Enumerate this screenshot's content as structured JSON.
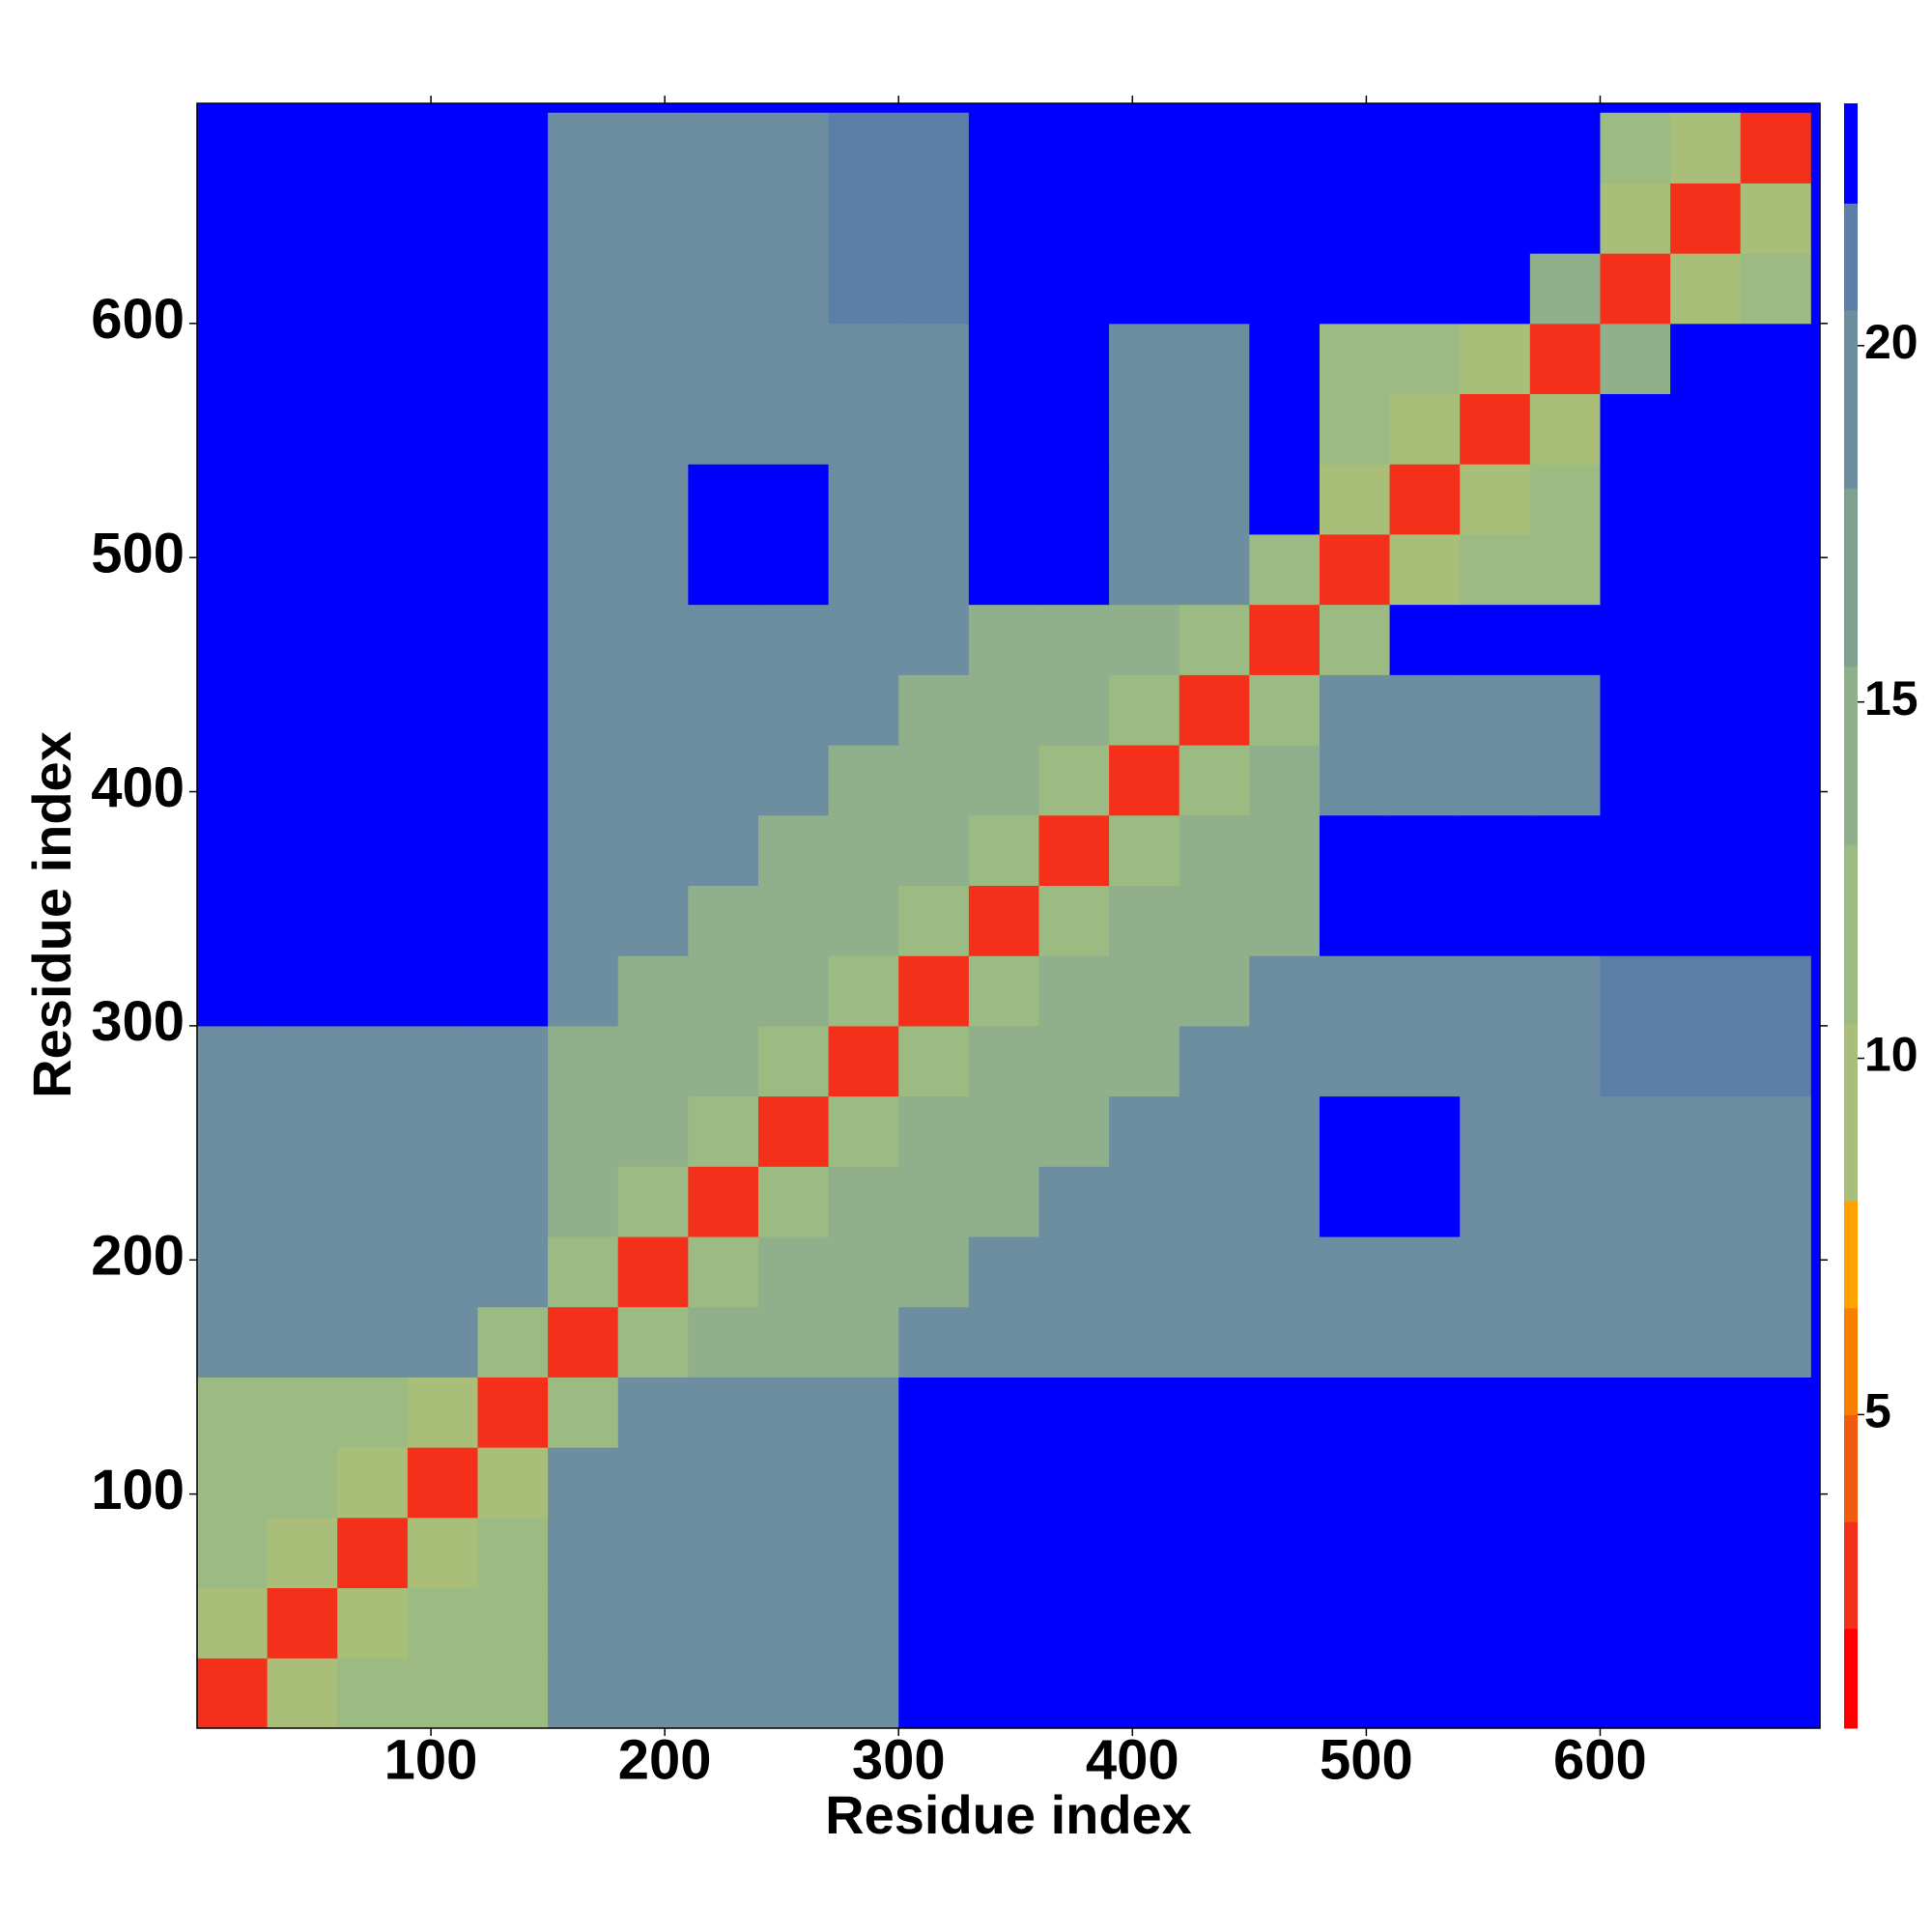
{
  "chart_data": {
    "type": "heatmap",
    "x_label": "Residue index",
    "y_label": "Residue index",
    "xlim": [
      0,
      694
    ],
    "ylim": [
      0,
      694
    ],
    "xticks": [
      100,
      200,
      300,
      400,
      500,
      600
    ],
    "yticks": [
      100,
      200,
      300,
      400,
      500,
      600
    ],
    "x_bins": [
      0,
      30,
      60,
      90,
      120,
      150,
      180,
      210,
      240,
      270,
      300,
      330,
      360,
      390,
      420,
      450,
      480,
      510,
      540,
      570,
      600,
      630,
      660,
      690
    ],
    "y_bins": [
      0,
      30,
      60,
      90,
      120,
      150,
      180,
      210,
      240,
      270,
      300,
      330,
      360,
      390,
      420,
      450,
      480,
      510,
      540,
      570,
      600,
      630,
      660,
      690
    ],
    "values": [
      [
        3,
        10,
        12,
        12,
        12,
        20,
        20,
        20,
        20,
        20,
        23,
        23,
        23,
        23,
        23,
        23,
        23,
        23,
        23,
        23,
        23,
        23,
        23
      ],
      [
        10,
        3,
        10,
        12,
        12,
        20,
        20,
        20,
        20,
        20,
        23,
        23,
        23,
        23,
        23,
        23,
        23,
        23,
        23,
        23,
        23,
        23,
        23
      ],
      [
        12,
        10,
        3,
        10,
        12,
        20,
        20,
        20,
        20,
        20,
        23,
        23,
        23,
        23,
        23,
        23,
        23,
        23,
        23,
        23,
        23,
        23,
        23
      ],
      [
        12,
        12,
        10,
        3,
        10,
        20,
        20,
        20,
        20,
        20,
        23,
        23,
        23,
        23,
        23,
        23,
        23,
        23,
        23,
        23,
        23,
        23,
        23
      ],
      [
        12,
        12,
        12,
        10,
        3,
        11,
        20,
        20,
        20,
        20,
        23,
        23,
        23,
        23,
        23,
        23,
        23,
        23,
        23,
        23,
        23,
        23,
        23
      ],
      [
        20,
        20,
        20,
        20,
        11,
        3,
        11,
        14,
        14,
        14,
        18,
        18,
        18,
        18,
        18,
        18,
        19,
        19,
        19,
        19,
        19,
        19,
        19
      ],
      [
        20,
        20,
        20,
        20,
        20,
        11,
        3,
        11,
        14,
        14,
        14,
        18,
        18,
        18,
        18,
        18,
        19,
        19,
        19,
        19,
        19,
        19,
        19
      ],
      [
        20,
        20,
        20,
        20,
        20,
        14,
        11,
        3,
        11,
        14,
        14,
        14,
        18,
        18,
        18,
        18,
        23,
        23,
        20,
        20,
        20,
        20,
        20
      ],
      [
        20,
        20,
        20,
        20,
        20,
        14,
        14,
        11,
        3,
        11,
        14,
        14,
        14,
        18,
        18,
        18,
        23,
        23,
        20,
        20,
        20,
        20,
        20
      ],
      [
        20,
        20,
        20,
        20,
        20,
        14,
        14,
        14,
        11,
        3,
        11,
        14,
        14,
        14,
        18,
        18,
        19,
        19,
        19,
        19,
        21,
        21,
        21
      ],
      [
        23,
        23,
        23,
        23,
        23,
        18,
        14,
        14,
        14,
        11,
        3,
        11,
        14,
        14,
        14,
        18,
        19,
        19,
        19,
        19,
        21,
        21,
        21
      ],
      [
        23,
        23,
        23,
        23,
        23,
        18,
        18,
        14,
        14,
        14,
        11,
        3,
        11,
        14,
        14,
        14,
        22,
        22,
        22,
        22,
        22,
        22,
        22
      ],
      [
        23,
        23,
        23,
        23,
        23,
        18,
        18,
        18,
        14,
        14,
        14,
        11,
        3,
        11,
        14,
        14,
        22,
        22,
        22,
        22,
        22,
        22,
        22
      ],
      [
        23,
        23,
        23,
        23,
        23,
        18,
        18,
        18,
        18,
        14,
        14,
        14,
        11,
        3,
        11,
        14,
        20,
        20,
        20,
        20,
        22,
        22,
        22
      ],
      [
        23,
        23,
        23,
        23,
        23,
        18,
        18,
        18,
        18,
        18,
        14,
        14,
        14,
        11,
        3,
        11,
        20,
        20,
        20,
        20,
        22,
        22,
        22
      ],
      [
        23,
        23,
        23,
        23,
        23,
        18,
        18,
        18,
        18,
        18,
        18,
        14,
        14,
        14,
        11,
        3,
        11,
        23,
        23,
        23,
        23,
        23,
        23
      ],
      [
        23,
        23,
        23,
        23,
        23,
        19,
        19,
        23,
        23,
        19,
        19,
        22,
        22,
        20,
        20,
        11,
        3,
        10,
        12,
        12,
        23,
        23,
        23
      ],
      [
        23,
        23,
        23,
        23,
        23,
        19,
        19,
        23,
        23,
        19,
        19,
        22,
        22,
        20,
        20,
        23,
        10,
        3,
        10,
        12,
        23,
        23,
        23
      ],
      [
        23,
        23,
        23,
        23,
        23,
        19,
        19,
        20,
        20,
        19,
        19,
        22,
        22,
        20,
        20,
        23,
        12,
        10,
        3,
        10,
        23,
        23,
        23
      ],
      [
        23,
        23,
        23,
        23,
        23,
        19,
        19,
        20,
        20,
        19,
        19,
        22,
        22,
        20,
        20,
        23,
        12,
        12,
        10,
        3,
        14,
        23,
        23
      ],
      [
        23,
        23,
        23,
        23,
        23,
        19,
        19,
        20,
        20,
        21,
        21,
        22,
        22,
        22,
        22,
        23,
        23,
        23,
        23,
        14,
        3,
        10,
        12
      ],
      [
        23,
        23,
        23,
        23,
        23,
        19,
        19,
        20,
        20,
        21,
        21,
        22,
        22,
        22,
        22,
        23,
        23,
        23,
        23,
        23,
        10,
        3,
        10
      ],
      [
        23,
        23,
        23,
        23,
        23,
        19,
        19,
        20,
        20,
        21,
        21,
        22,
        22,
        22,
        22,
        23,
        23,
        23,
        23,
        23,
        12,
        10,
        3
      ]
    ],
    "colorbar": {
      "lim": [
        0.6,
        23.4
      ],
      "ticks": [
        5,
        10,
        15,
        20
      ],
      "bounds": [
        0.6,
        2.0,
        3.5,
        5.0,
        6.5,
        8.0,
        10.5,
        13,
        15.5,
        18,
        20.5,
        22,
        23.4
      ],
      "colors": [
        "#ff0000",
        "#f4301a",
        "#f25a0e",
        "#f87f00",
        "#ffa200",
        "#a9bf79",
        "#9cbb82",
        "#8fb08a",
        "#7ea190",
        "#6c8ea0",
        "#5c7fa8",
        "#0000ff"
      ]
    }
  }
}
